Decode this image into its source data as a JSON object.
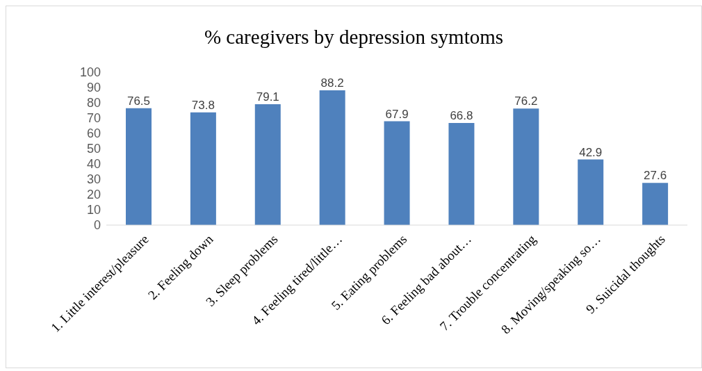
{
  "chart_data": {
    "type": "bar",
    "title": "% caregivers by depression symtoms",
    "categories": [
      "1. Little interest/pleasure",
      "2. Feeling down",
      "3. Sleep problems",
      "4. Feeling tired/little…",
      "5. Eating problems",
      "6. Feeling bad about…",
      "7. Trouble concentrating",
      "8. Moving/speaking so…",
      "9. Suicidal thoughts"
    ],
    "values": [
      76.5,
      73.8,
      79.1,
      88.2,
      67.9,
      66.8,
      76.2,
      42.9,
      27.6
    ],
    "color": "#4f81bd",
    "ylim": [
      0,
      100
    ],
    "yticks": [
      0,
      10,
      20,
      30,
      40,
      50,
      60,
      70,
      80,
      90,
      100
    ],
    "grid": false,
    "data_labels": true
  }
}
